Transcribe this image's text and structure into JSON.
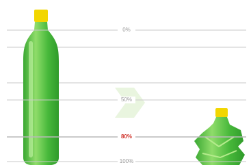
{
  "levels": [
    {
      "label": "0%"
    },
    {
      "label": "50%"
    },
    {
      "label": "80%",
      "highlight": true
    },
    {
      "label": "100%"
    }
  ]
}
